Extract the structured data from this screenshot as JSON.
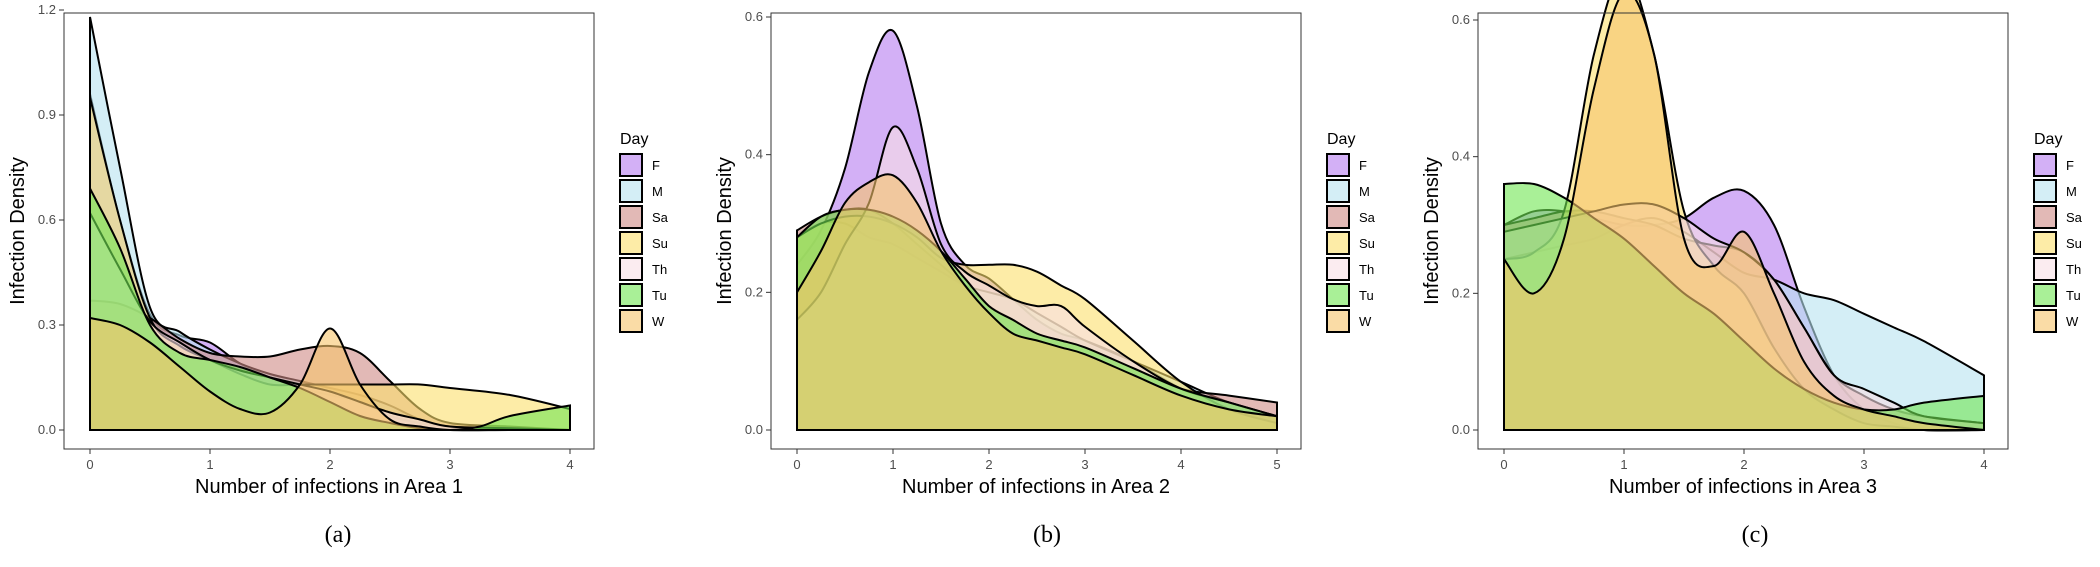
{
  "chart_data": [
    {
      "type": "area",
      "caption": "(a)",
      "xlabel": "Number of infections in Area 1",
      "ylabel": "Infection Density",
      "xlim": [
        0,
        4
      ],
      "ylim": [
        0,
        1.2
      ],
      "xticks": [
        0,
        1,
        2,
        3,
        4
      ],
      "yticks": [
        0.0,
        0.3,
        0.6,
        0.9,
        1.2
      ],
      "ytick_labels": [
        "0.0",
        "0.3",
        "0.6",
        "0.9",
        "1.2"
      ],
      "legend_title": "Day",
      "legend_position": "right",
      "series": [
        {
          "name": "F",
          "color": "#b67cf0",
          "x": [
            0,
            0.25,
            0.5,
            0.75,
            1.0,
            1.25,
            1.5,
            1.75,
            2.0,
            2.25,
            2.5,
            2.75,
            3.0,
            3.5,
            4.0
          ],
          "values": [
            0.96,
            0.6,
            0.33,
            0.27,
            0.25,
            0.19,
            0.15,
            0.12,
            0.1,
            0.08,
            0.04,
            0.02,
            0.01,
            0.005,
            0.0
          ]
        },
        {
          "name": "M",
          "color": "#b8e2f0",
          "x": [
            0,
            0.25,
            0.5,
            0.75,
            1.0,
            1.25,
            1.5,
            1.75,
            2.0,
            2.25,
            2.5,
            2.75,
            3.0,
            3.5,
            4.0
          ],
          "values": [
            1.18,
            0.75,
            0.35,
            0.28,
            0.23,
            0.19,
            0.16,
            0.14,
            0.12,
            0.1,
            0.07,
            0.03,
            0.01,
            0.005,
            0.0
          ]
        },
        {
          "name": "Sa",
          "color": "#cf8a86",
          "x": [
            0,
            0.25,
            0.5,
            0.75,
            1.0,
            1.25,
            1.5,
            1.75,
            2.0,
            2.25,
            2.5,
            2.75,
            3.0,
            3.5,
            4.0
          ],
          "values": [
            0.37,
            0.36,
            0.32,
            0.26,
            0.22,
            0.21,
            0.21,
            0.23,
            0.24,
            0.22,
            0.14,
            0.06,
            0.02,
            0.01,
            0.0
          ]
        },
        {
          "name": "Su",
          "color": "#fbe06c",
          "x": [
            0,
            0.25,
            0.5,
            0.75,
            1.0,
            1.25,
            1.5,
            1.75,
            2.0,
            2.25,
            2.5,
            2.75,
            3.0,
            3.5,
            4.0
          ],
          "values": [
            0.95,
            0.6,
            0.32,
            0.24,
            0.2,
            0.16,
            0.13,
            0.13,
            0.13,
            0.13,
            0.13,
            0.13,
            0.12,
            0.1,
            0.06
          ]
        },
        {
          "name": "Th",
          "color": "#f8dfe6",
          "x": [
            0,
            0.25,
            0.5,
            0.75,
            1.0,
            1.25,
            1.5,
            1.75,
            2.0,
            2.25,
            2.5,
            2.75,
            3.0,
            3.5,
            4.0
          ],
          "values": [
            0.62,
            0.46,
            0.31,
            0.25,
            0.2,
            0.17,
            0.15,
            0.13,
            0.11,
            0.08,
            0.05,
            0.03,
            0.01,
            0.005,
            0.0
          ]
        },
        {
          "name": "Tu",
          "color": "#6fe652",
          "x": [
            0,
            0.25,
            0.5,
            0.75,
            1.0,
            1.25,
            1.5,
            1.75,
            2.0,
            2.25,
            2.5,
            2.75,
            3.0,
            3.25,
            3.5,
            4.0
          ],
          "values": [
            0.69,
            0.52,
            0.3,
            0.22,
            0.2,
            0.18,
            0.15,
            0.12,
            0.08,
            0.04,
            0.02,
            0.005,
            0.0,
            0.01,
            0.04,
            0.07
          ]
        },
        {
          "name": "W",
          "color": "#f7c46a",
          "x": [
            0,
            0.25,
            0.5,
            0.75,
            1.0,
            1.25,
            1.5,
            1.75,
            2.0,
            2.25,
            2.5,
            2.75,
            3.0,
            3.5,
            4.0
          ],
          "values": [
            0.32,
            0.3,
            0.25,
            0.18,
            0.11,
            0.06,
            0.05,
            0.13,
            0.29,
            0.13,
            0.03,
            0.01,
            0.0,
            0.0,
            0.0
          ]
        }
      ]
    },
    {
      "type": "area",
      "caption": "(b)",
      "xlabel": "Number of infections in Area 2",
      "ylabel": "Infection Density",
      "xlim": [
        0,
        5
      ],
      "ylim": [
        0,
        0.6
      ],
      "xticks": [
        0,
        1,
        2,
        3,
        4,
        5
      ],
      "yticks": [
        0.0,
        0.2,
        0.4,
        0.6
      ],
      "ytick_labels": [
        "0.0",
        "0.2",
        "0.4",
        "0.6"
      ],
      "legend_title": "Day",
      "legend_position": "right",
      "series": [
        {
          "name": "F",
          "color": "#b67cf0",
          "x": [
            0,
            0.25,
            0.5,
            0.75,
            1.0,
            1.25,
            1.5,
            1.75,
            2.0,
            2.25,
            2.5,
            2.75,
            3.0,
            3.5,
            4.0,
            4.5,
            5.0
          ],
          "values": [
            0.24,
            0.29,
            0.38,
            0.52,
            0.58,
            0.47,
            0.3,
            0.24,
            0.22,
            0.19,
            0.16,
            0.14,
            0.13,
            0.1,
            0.06,
            0.03,
            0.01
          ]
        },
        {
          "name": "M",
          "color": "#b8e2f0",
          "x": [
            0,
            0.25,
            0.5,
            0.75,
            1.0,
            1.25,
            1.5,
            1.75,
            2.0,
            2.25,
            2.5,
            2.75,
            3.0,
            3.5,
            4.0,
            4.5,
            5.0
          ],
          "values": [
            0.28,
            0.3,
            0.3,
            0.28,
            0.27,
            0.25,
            0.23,
            0.21,
            0.2,
            0.19,
            0.17,
            0.15,
            0.13,
            0.1,
            0.07,
            0.04,
            0.02
          ]
        },
        {
          "name": "Sa",
          "color": "#cf8a86",
          "x": [
            0,
            0.25,
            0.5,
            0.75,
            1.0,
            1.25,
            1.5,
            1.75,
            2.0,
            2.25,
            2.5,
            2.75,
            3.0,
            3.5,
            4.0,
            4.5,
            5.0
          ],
          "values": [
            0.29,
            0.31,
            0.32,
            0.32,
            0.3,
            0.27,
            0.24,
            0.21,
            0.18,
            0.16,
            0.14,
            0.13,
            0.12,
            0.09,
            0.06,
            0.05,
            0.04
          ]
        },
        {
          "name": "Su",
          "color": "#fbe06c",
          "x": [
            0,
            0.25,
            0.5,
            0.75,
            1.0,
            1.25,
            1.5,
            1.75,
            2.0,
            2.25,
            2.5,
            2.75,
            3.0,
            3.5,
            4.0,
            4.5,
            5.0
          ],
          "values": [
            0.28,
            0.3,
            0.31,
            0.31,
            0.3,
            0.28,
            0.25,
            0.24,
            0.24,
            0.24,
            0.23,
            0.21,
            0.19,
            0.13,
            0.07,
            0.03,
            0.01
          ]
        },
        {
          "name": "Th",
          "color": "#f8dfe6",
          "x": [
            0,
            0.25,
            0.5,
            0.75,
            1.0,
            1.25,
            1.5,
            1.75,
            2.0,
            2.25,
            2.5,
            2.75,
            3.0,
            3.5,
            4.0,
            4.5,
            5.0
          ],
          "values": [
            0.16,
            0.2,
            0.27,
            0.33,
            0.44,
            0.38,
            0.27,
            0.23,
            0.21,
            0.19,
            0.18,
            0.18,
            0.15,
            0.1,
            0.06,
            0.04,
            0.02
          ]
        },
        {
          "name": "Tu",
          "color": "#6fe652",
          "x": [
            0,
            0.25,
            0.5,
            0.75,
            1.0,
            1.25,
            1.5,
            1.75,
            2.0,
            2.25,
            2.5,
            2.75,
            3.0,
            3.5,
            4.0,
            4.5,
            5.0
          ],
          "values": [
            0.28,
            0.31,
            0.32,
            0.32,
            0.31,
            0.29,
            0.26,
            0.22,
            0.18,
            0.16,
            0.14,
            0.13,
            0.12,
            0.09,
            0.06,
            0.04,
            0.02
          ]
        },
        {
          "name": "W",
          "color": "#f7c46a",
          "x": [
            0,
            0.25,
            0.5,
            0.75,
            1.0,
            1.25,
            1.5,
            1.75,
            2.0,
            2.25,
            2.5,
            2.75,
            3.0,
            3.5,
            4.0,
            4.5,
            5.0
          ],
          "values": [
            0.2,
            0.26,
            0.33,
            0.36,
            0.37,
            0.33,
            0.26,
            0.21,
            0.17,
            0.14,
            0.13,
            0.12,
            0.11,
            0.08,
            0.05,
            0.03,
            0.02
          ]
        }
      ]
    },
    {
      "type": "area",
      "caption": "(c)",
      "xlabel": "Number of infections in Area 3",
      "ylabel": "Infection Density",
      "xlim": [
        0,
        4
      ],
      "ylim": [
        0,
        0.6
      ],
      "xticks": [
        0,
        1,
        2,
        3,
        4
      ],
      "yticks": [
        0.0,
        0.2,
        0.4,
        0.6
      ],
      "ytick_labels": [
        "0.0",
        "0.2",
        "0.4",
        "0.6"
      ],
      "legend_title": "Day",
      "legend_position": "right",
      "series": [
        {
          "name": "F",
          "color": "#b67cf0",
          "x": [
            0,
            0.25,
            0.5,
            0.75,
            1.0,
            1.25,
            1.5,
            1.75,
            2.0,
            2.25,
            2.5,
            2.75,
            3.0,
            3.25,
            3.5,
            4.0
          ],
          "values": [
            0.3,
            0.32,
            0.32,
            0.31,
            0.3,
            0.3,
            0.31,
            0.34,
            0.35,
            0.3,
            0.18,
            0.08,
            0.03,
            0.01,
            0.0,
            0.0
          ]
        },
        {
          "name": "M",
          "color": "#b8e2f0",
          "x": [
            0,
            0.25,
            0.5,
            0.75,
            1.0,
            1.25,
            1.5,
            1.75,
            2.0,
            2.25,
            2.5,
            2.75,
            3.0,
            3.25,
            3.5,
            4.0
          ],
          "values": [
            0.25,
            0.26,
            0.27,
            0.28,
            0.3,
            0.31,
            0.29,
            0.26,
            0.23,
            0.22,
            0.2,
            0.19,
            0.17,
            0.15,
            0.13,
            0.08
          ]
        },
        {
          "name": "Sa",
          "color": "#cf8a86",
          "x": [
            0,
            0.25,
            0.5,
            0.75,
            1.0,
            1.25,
            1.5,
            1.75,
            2.0,
            2.25,
            2.5,
            2.75,
            3.0,
            3.25,
            3.5,
            4.0
          ],
          "values": [
            0.3,
            0.31,
            0.32,
            0.32,
            0.31,
            0.3,
            0.28,
            0.27,
            0.26,
            0.22,
            0.15,
            0.08,
            0.05,
            0.03,
            0.02,
            0.01
          ]
        },
        {
          "name": "Su",
          "color": "#fbe06c",
          "x": [
            0,
            0.25,
            0.5,
            0.75,
            1.0,
            1.25,
            1.5,
            1.75,
            2.0,
            2.25,
            2.5,
            2.75,
            3.0,
            3.25,
            3.5,
            4.0
          ],
          "values": [
            0.25,
            0.26,
            0.32,
            0.55,
            0.67,
            0.55,
            0.32,
            0.24,
            0.2,
            0.12,
            0.06,
            0.03,
            0.01,
            0.005,
            0.0,
            0.0
          ]
        },
        {
          "name": "Th",
          "color": "#f8dfe6",
          "x": [
            0,
            0.25,
            0.5,
            0.75,
            1.0,
            1.25,
            1.5,
            1.75,
            2.0,
            2.25,
            2.5,
            2.75,
            3.0,
            3.25,
            3.5,
            4.0
          ],
          "values": [
            0.29,
            0.3,
            0.31,
            0.32,
            0.33,
            0.33,
            0.31,
            0.28,
            0.26,
            0.22,
            0.15,
            0.08,
            0.06,
            0.04,
            0.02,
            0.01
          ]
        },
        {
          "name": "Tu",
          "color": "#6fe652",
          "x": [
            0,
            0.25,
            0.5,
            0.75,
            1.0,
            1.25,
            1.5,
            1.75,
            2.0,
            2.25,
            2.5,
            2.75,
            3.0,
            3.25,
            3.5,
            4.0
          ],
          "values": [
            0.36,
            0.36,
            0.34,
            0.31,
            0.28,
            0.24,
            0.2,
            0.17,
            0.13,
            0.09,
            0.06,
            0.04,
            0.03,
            0.03,
            0.04,
            0.05
          ]
        },
        {
          "name": "W",
          "color": "#f7c46a",
          "x": [
            0,
            0.25,
            0.5,
            0.75,
            1.0,
            1.25,
            1.5,
            1.75,
            2.0,
            2.25,
            2.5,
            2.75,
            3.0,
            3.25,
            3.5,
            4.0
          ],
          "values": [
            0.25,
            0.2,
            0.28,
            0.5,
            0.64,
            0.55,
            0.28,
            0.24,
            0.29,
            0.2,
            0.1,
            0.05,
            0.03,
            0.02,
            0.01,
            0.0
          ]
        }
      ]
    }
  ]
}
